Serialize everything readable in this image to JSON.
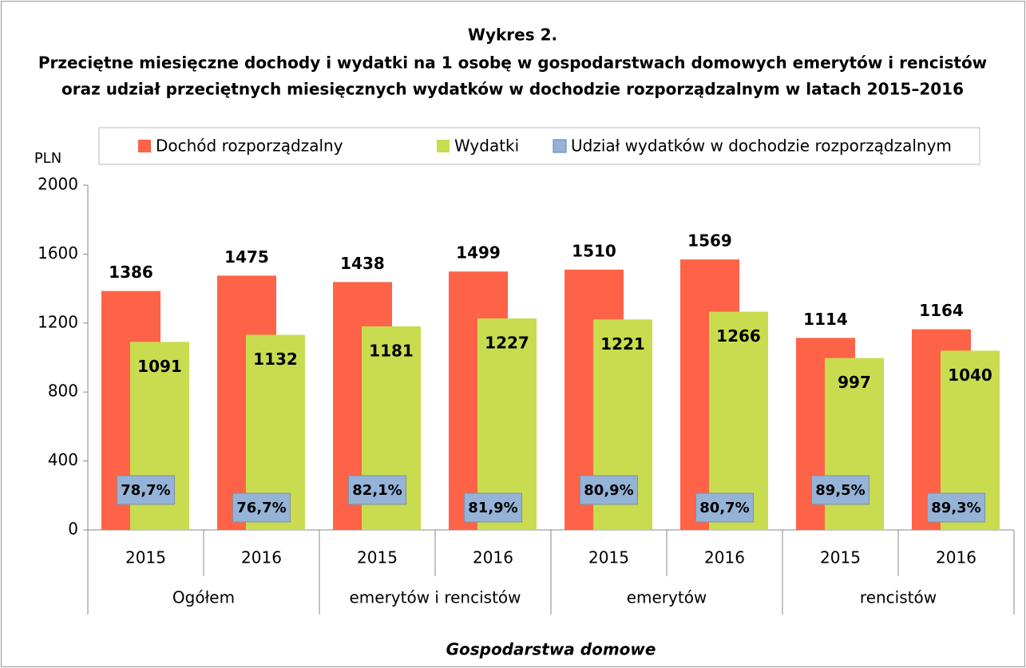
{
  "chart_data": {
    "type": "bar",
    "title": "Wykres 2.",
    "subtitle": [
      "Przeciętne miesięczne dochody i wydatki na 1 osobę w gospodarstwach domowych emerytów i rencistów",
      "oraz udział przeciętnych miesięcznych wydatków w dochodzie rozporządzalnym w latach 2015–2016"
    ],
    "y_label": "PLN",
    "x_label": "Gospodarstwa domowe",
    "categories": [
      "2015",
      "2016",
      "2015",
      "2016",
      "2015",
      "2016",
      "2015",
      "2016"
    ],
    "category_groups": [
      "Ogółem",
      "emerytów i rencistów",
      "emerytów",
      "rencistów"
    ],
    "series": [
      {
        "name": "Dochód rozporządzalny",
        "color": "#fe6347",
        "values": [
          1386,
          1475,
          1438,
          1499,
          1510,
          1569,
          1114,
          1164
        ]
      },
      {
        "name": "Wydatki",
        "color": "#c9dc50",
        "values": [
          1091,
          1132,
          1181,
          1227,
          1221,
          1266,
          997,
          1040
        ]
      },
      {
        "name": "Udział wydatków w dochodzie rozporządzalnym",
        "color": "#95b3d7",
        "values": [
          78.7,
          76.7,
          82.1,
          81.9,
          80.9,
          80.7,
          89.5,
          89.3
        ],
        "value_labels": [
          "78,7%",
          "76,7%",
          "82,1%",
          "81,9%",
          "80,9%",
          "80,7%",
          "89,5%",
          "89,3%"
        ]
      }
    ],
    "ylim": [
      0,
      2000
    ],
    "yticks": [
      0,
      400,
      800,
      1200,
      1600,
      2000
    ],
    "grid": false,
    "legend": "top"
  }
}
